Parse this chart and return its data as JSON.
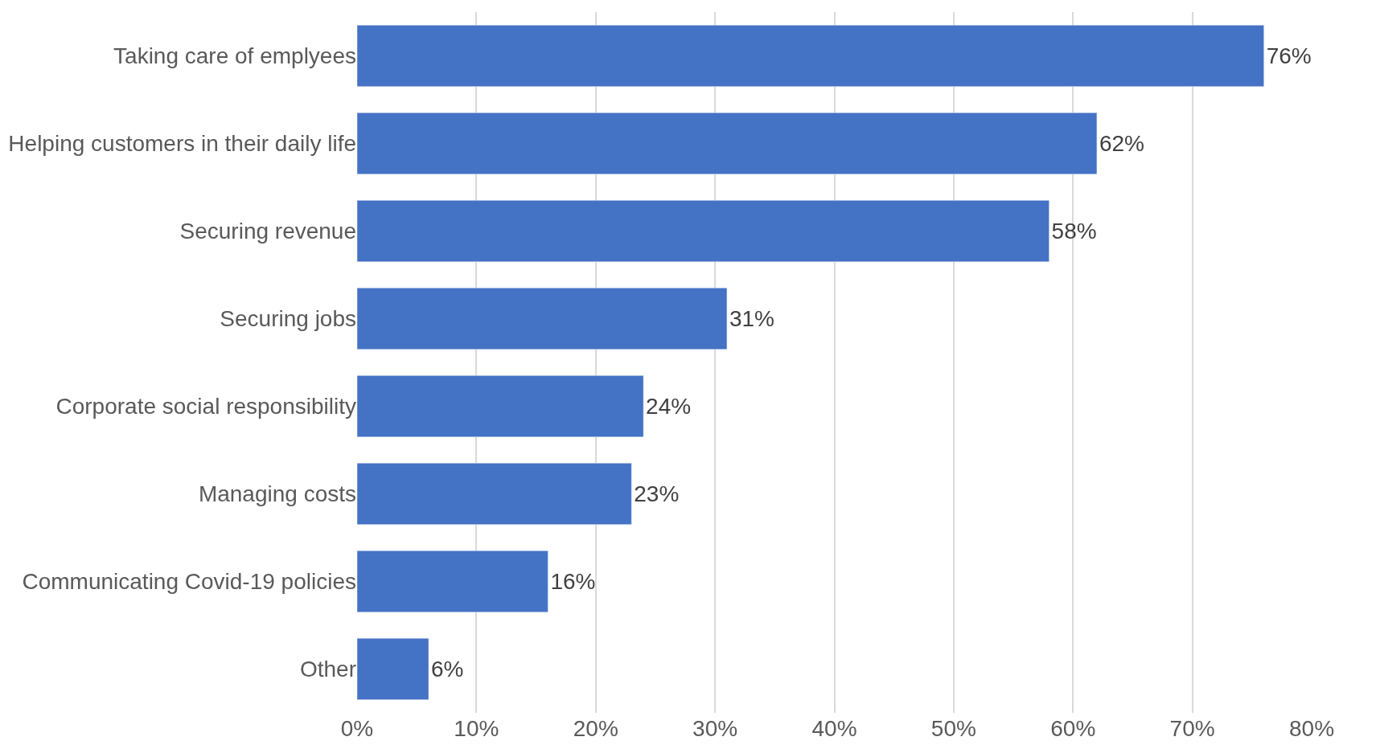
{
  "chart_data": {
    "type": "bar",
    "orientation": "horizontal",
    "categories": [
      "Taking care of emplyees",
      "Helping customers in their daily life",
      "Securing revenue",
      "Securing jobs",
      "Corporate social responsibility",
      "Managing costs",
      "Communicating Covid-19 policies",
      "Other"
    ],
    "values": [
      76,
      62,
      58,
      31,
      24,
      23,
      16,
      6
    ],
    "value_labels": [
      "76%",
      "62%",
      "58%",
      "31%",
      "24%",
      "23%",
      "16%",
      "6%"
    ],
    "color": "#4472c4",
    "xlim": [
      0,
      80
    ],
    "xticks": [
      {
        "value": 0,
        "label": "0%"
      },
      {
        "value": 10,
        "label": "10%"
      },
      {
        "value": 20,
        "label": "20%"
      },
      {
        "value": 30,
        "label": "30%"
      },
      {
        "value": 40,
        "label": "40%"
      },
      {
        "value": 50,
        "label": "50%"
      },
      {
        "value": 60,
        "label": "60%"
      },
      {
        "value": 70,
        "label": "70%"
      },
      {
        "value": 80,
        "label": "80%"
      }
    ],
    "grid": "x",
    "legend": false
  }
}
